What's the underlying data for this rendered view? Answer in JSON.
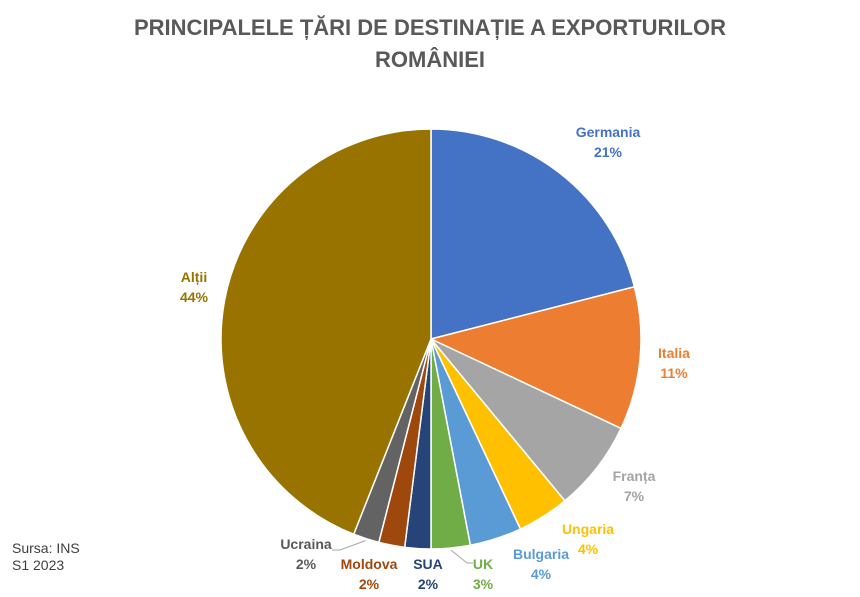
{
  "title_line1": "PRINCIPALELE ȚĂRI DE DESTINAȚIE A EXPORTURILOR",
  "title_line2": "ROMÂNIEI",
  "source_line1": "Sursa: INS",
  "source_line2": "S1 2023",
  "chart_data": {
    "type": "pie",
    "title": "PRINCIPALELE ȚĂRI DE DESTINAȚIE A EXPORTURILOR ROMÂNIEI",
    "slices": [
      {
        "label": "Germania",
        "value": 21,
        "pct_label": "21%",
        "color": "#4472C4"
      },
      {
        "label": "Italia",
        "value": 11,
        "pct_label": "11%",
        "color": "#ED7D31"
      },
      {
        "label": "Franța",
        "value": 7,
        "pct_label": "7%",
        "color": "#A5A5A5"
      },
      {
        "label": "Ungaria",
        "value": 4,
        "pct_label": "4%",
        "color": "#FFC000"
      },
      {
        "label": "Bulgaria",
        "value": 4,
        "pct_label": "4%",
        "color": "#5B9BD5"
      },
      {
        "label": "UK",
        "value": 3,
        "pct_label": "3%",
        "color": "#70AD47"
      },
      {
        "label": "SUA",
        "value": 2,
        "pct_label": "2%",
        "color": "#264478"
      },
      {
        "label": "Moldova",
        "value": 2,
        "pct_label": "2%",
        "color": "#9E480E"
      },
      {
        "label": "Ucraina",
        "value": 2,
        "pct_label": "2%",
        "color": "#636363"
      },
      {
        "label": "Alții",
        "value": 44,
        "pct_label": "44%",
        "color": "#997300"
      }
    ]
  }
}
